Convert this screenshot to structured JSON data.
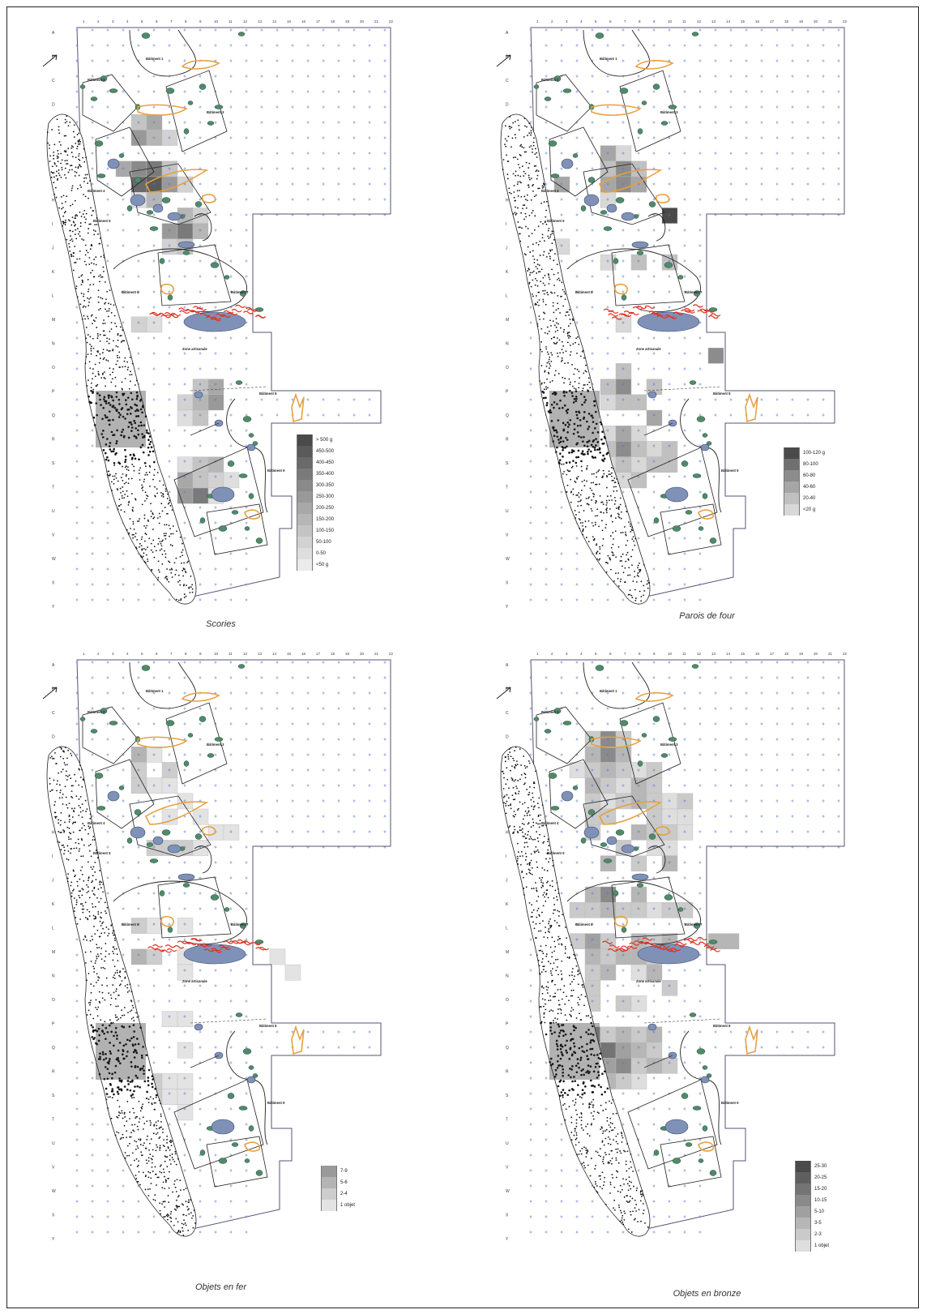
{
  "colors": {
    "pit_green": "#4f8a6b",
    "feature_blue": "#8091b8",
    "orange": "#e8a040",
    "red": "#e03020",
    "grid_blue": "#5577cc",
    "outline": "#555577"
  },
  "grid": {
    "columns": [
      "1",
      "2",
      "3",
      "4",
      "5",
      "6",
      "7",
      "8",
      "9",
      "10",
      "11",
      "12",
      "13",
      "14",
      "15",
      "16",
      "17",
      "18",
      "19",
      "20",
      "21",
      "22"
    ],
    "rows": [
      "A",
      "B",
      "C",
      "D",
      "E",
      "F",
      "G",
      "H",
      "I",
      "J",
      "K",
      "L",
      "M",
      "N",
      "O",
      "P",
      "Q",
      "R",
      "S",
      "T",
      "U",
      "V",
      "W",
      "X",
      "Y"
    ]
  },
  "panels": [
    {
      "caption": "Scories",
      "legend": [
        {
          "label": "> 500 g",
          "shade": "#4a4a4a"
        },
        {
          "label": "450-500",
          "shade": "#5a5a5a"
        },
        {
          "label": "400-450",
          "shade": "#6a6a6a"
        },
        {
          "label": "350-400",
          "shade": "#7a7a7a"
        },
        {
          "label": "300-350",
          "shade": "#8a8a8a"
        },
        {
          "label": "250-300",
          "shade": "#999999"
        },
        {
          "label": "200-250",
          "shade": "#a8a8a8"
        },
        {
          "label": "150-200",
          "shade": "#b6b6b6"
        },
        {
          "label": "100-150",
          "shade": "#c4c4c4"
        },
        {
          "label": "50-100",
          "shade": "#d2d2d2"
        },
        {
          "label": "0-50",
          "shade": "#dedede"
        },
        {
          "label": "<50 g",
          "shade": "#ebebeb"
        }
      ],
      "labels": {
        "structure_1": "Bâtiment 1",
        "structure_2": "Bâtiment 2",
        "structure_3": "Bâtiment 3",
        "structure_4": "Bâtiment 4",
        "structure_5": "Bâtiment 5",
        "structure_6": "Bâtiment 6",
        "structure_7": "Bâtiment 7",
        "structure_8": "Bâtiment 8",
        "structure_9": "Bâtiment 9",
        "zone": "Zone artisanale"
      }
    },
    {
      "caption": "Parois de four",
      "legend": [
        {
          "label": "100-120 g",
          "shade": "#4a4a4a"
        },
        {
          "label": "80-100",
          "shade": "#707070"
        },
        {
          "label": "60-80",
          "shade": "#8c8c8c"
        },
        {
          "label": "40-60",
          "shade": "#a6a6a6"
        },
        {
          "label": "20-40",
          "shade": "#c0c0c0"
        },
        {
          "label": "<20 g",
          "shade": "#d8d8d8"
        }
      ],
      "labels": {
        "structure_1": "Bâtiment 1",
        "structure_2": "Bâtiment 2",
        "structure_3": "Bâtiment 3",
        "structure_4": "Bâtiment 4",
        "structure_5": "Bâtiment 5",
        "structure_6": "Bâtiment 6",
        "structure_7": "Bâtiment 7",
        "structure_8": "Bâtiment 8",
        "structure_9": "Bâtiment 9",
        "zone": "Zone artisanale"
      }
    },
    {
      "caption": "Objets en fer",
      "legend": [
        {
          "label": "7-9",
          "shade": "#9a9a9a"
        },
        {
          "label": "5-6",
          "shade": "#b4b4b4"
        },
        {
          "label": "2-4",
          "shade": "#cdcdcd"
        },
        {
          "label": "1 objet",
          "shade": "#e3e3e3"
        }
      ],
      "labels": {
        "structure_1": "Bâtiment 1",
        "structure_2": "Bâtiment 2",
        "structure_3": "Bâtiment 3",
        "structure_4": "Bâtiment 4",
        "structure_5": "Bâtiment 5",
        "structure_6": "Bâtiment 6",
        "structure_7": "Bâtiment 7",
        "structure_8": "Bâtiment 8",
        "structure_9": "Bâtiment 9",
        "zone": "Zone artisanale"
      }
    },
    {
      "caption": "Objets en bronze",
      "legend": [
        {
          "label": "25-30",
          "shade": "#4a4a4a"
        },
        {
          "label": "20-25",
          "shade": "#5f5f5f"
        },
        {
          "label": "15-20",
          "shade": "#747474"
        },
        {
          "label": "10-15",
          "shade": "#8a8a8a"
        },
        {
          "label": "5-10",
          "shade": "#a0a0a0"
        },
        {
          "label": "3-5",
          "shade": "#b6b6b6"
        },
        {
          "label": "2-3",
          "shade": "#cacaca"
        },
        {
          "label": "1 objet",
          "shade": "#dedede"
        }
      ],
      "labels": {
        "structure_1": "Bâtiment 1",
        "structure_2": "Bâtiment 2",
        "structure_3": "Bâtiment 3",
        "structure_4": "Bâtiment 4",
        "structure_5": "Bâtiment 5",
        "structure_6": "Bâtiment 6",
        "structure_7": "Bâtiment 7",
        "structure_8": "Bâtiment 8",
        "structure_9": "Bâtiment 9",
        "zone": "Zone artisanale"
      }
    }
  ]
}
